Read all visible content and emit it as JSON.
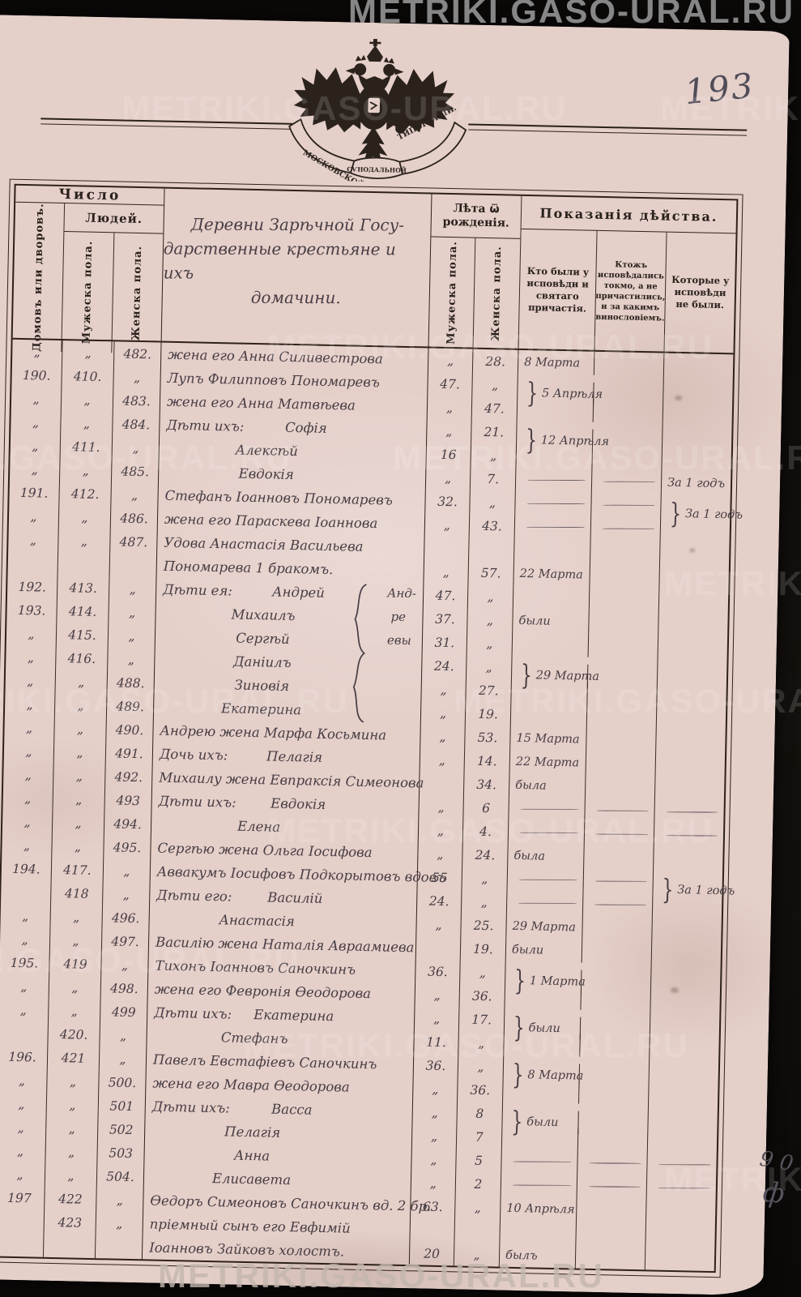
{
  "watermark": "METRIKI.GASO-URAL.RU",
  "page_number": "193",
  "emblem": {
    "ribbon_left": "МОСКОВСКОЙ",
    "ribbon_center": "СѴНОДАЛЬНОЙ",
    "ribbon_right": "ТИПОГРАФІИ."
  },
  "header": {
    "chislo": "Число",
    "lyudey": "Людей.",
    "col_houses": "Домовъ или дворовъ.",
    "col_male": "Мужеска пола.",
    "col_female": "Женска пола.",
    "village_lines": [
      "Деревни Зарѣчной Госу-",
      "дарственные крестьяне и ихъ",
      "домачини."
    ],
    "leta": "Лѣта ѿ рожденія.",
    "leta_male": "Мужеска пола.",
    "leta_female": "Женска пола.",
    "pokazaniya": "Показанія дѣйства.",
    "act1": "Кто были у исповѣди и святаго причастія.",
    "act2": "Ктожъ исповѣдались токмо, а не причастились, и за какимъ винословіемъ.",
    "act3": "Которые у исповѣди не были."
  },
  "group_note": [
    "Анд-",
    "ре",
    "евы"
  ],
  "margin_notes": [
    "9 0",
    "ф"
  ],
  "rows": [
    {
      "h": "„",
      "m": "„",
      "f": "482.",
      "name": "жена его Анна Силивестрова",
      "am": "„",
      "af": "28.",
      "a1": "8 Марта"
    },
    {
      "h": "190.",
      "m": "410.",
      "f": "„",
      "name": "Лупъ Филипповъ Пономаревъ",
      "am": "47.",
      "af": "„",
      "a1": "5 Апрѣля",
      "a1b": true
    },
    {
      "h": "„",
      "m": "„",
      "f": "483.",
      "name": "жена его Анна Матвѣева",
      "am": "„",
      "af": "47."
    },
    {
      "h": "„",
      "m": "„",
      "f": "484.",
      "name": "Дѣти ихъ:",
      "child": "Софія",
      "am": "„",
      "af": "21.",
      "a1": "12 Апрѣля",
      "a1b": true
    },
    {
      "h": "„",
      "m": "411.",
      "f": "„",
      "child": "Алексѣй",
      "am": "16",
      "af": "„"
    },
    {
      "h": "„",
      "m": "„",
      "f": "485.",
      "child": "Евдокія",
      "am": "„",
      "af": "7.",
      "d1": true,
      "d2": true,
      "a3": "За 1 годъ"
    },
    {
      "h": "191.",
      "m": "412.",
      "f": "„",
      "name": "Стефанъ Іоанновъ Пономаревъ",
      "am": "32.",
      "af": "„",
      "d1": true,
      "d2": true,
      "a3": "За 1 годъ",
      "a3b": true
    },
    {
      "h": "„",
      "m": "„",
      "f": "486.",
      "name": "жена его Параскева Іоаннова",
      "am": "„",
      "af": "43.",
      "d1": true,
      "d2": true
    },
    {
      "h": "„",
      "m": "„",
      "f": "487.",
      "name": "Удова Анастасія Васильева"
    },
    {
      "name": "Пономарева 1 бракомъ.",
      "am": "„",
      "af": "57.",
      "a1": "22 Марта"
    },
    {
      "h": "192.",
      "m": "413.",
      "f": "„",
      "name": "Дѣти ея:",
      "child": "Андрей",
      "am": "47.",
      "af": "„"
    },
    {
      "h": "193.",
      "m": "414.",
      "f": "„",
      "child": "Михаилъ",
      "am": "37.",
      "af": "„",
      "a1": "были"
    },
    {
      "h": "„",
      "m": "415.",
      "f": "„",
      "child": "Сергѣй",
      "am": "31.",
      "af": "„"
    },
    {
      "h": "„",
      "m": "416.",
      "f": "„",
      "child": "Даніилъ",
      "am": "24.",
      "af": "„",
      "a1": "29 Марта",
      "a1b": true
    },
    {
      "h": "„",
      "m": "„",
      "f": "488.",
      "child": "Зиновія",
      "am": "„",
      "af": "27."
    },
    {
      "h": "„",
      "m": "„",
      "f": "489.",
      "child": "Екатерина",
      "am": "„",
      "af": "19."
    },
    {
      "h": "„",
      "m": "„",
      "f": "490.",
      "name": "Андрею жена Марфа Косьмина",
      "am": "„",
      "af": "53.",
      "a1": "15 Марта"
    },
    {
      "h": "„",
      "m": "„",
      "f": "491.",
      "name": "Дочь ихъ:",
      "child": "Пелагія",
      "am": "„",
      "af": "14.",
      "a1": "22 Марта"
    },
    {
      "h": "„",
      "m": "„",
      "f": "492.",
      "name": "Михаилу жена Евпраксія Симеонова",
      "af": "34.",
      "a1": "была"
    },
    {
      "h": "„",
      "m": "„",
      "f": "493",
      "name": "Дѣти ихъ:",
      "child": "Евдокія",
      "am": "„",
      "af": "6",
      "d1": true,
      "d2": true,
      "d3": true
    },
    {
      "h": "„",
      "m": "„",
      "f": "494.",
      "child": "Елена",
      "am": "„",
      "af": "4.",
      "d1": true,
      "d2": true,
      "d3": true
    },
    {
      "h": "„",
      "m": "„",
      "f": "495.",
      "name": "Сергѣю жена Ольга Іосифова",
      "am": "„",
      "af": "24.",
      "a1": "была"
    },
    {
      "h": "194.",
      "m": "417.",
      "f": "„",
      "name": "Аввакумъ Іосифовъ Подкорытовъ вдовъ",
      "am": "55",
      "af": "„",
      "d1": true,
      "d2": true,
      "a3": "За 1 годъ",
      "a3b": true
    },
    {
      "h": "",
      "m": "418",
      "f": "„",
      "name": "Дѣти его:",
      "child": "Василій",
      "am": "24.",
      "af": "„",
      "d1": true,
      "d2": true
    },
    {
      "h": "„",
      "m": "„",
      "f": "496.",
      "child": "Анастасія",
      "am": "„",
      "af": "25.",
      "a1": "29 Марта"
    },
    {
      "h": "„",
      "m": "„",
      "f": "497.",
      "name": "Василію жена Наталія Авраамиева",
      "af": "19.",
      "a1": "были"
    },
    {
      "h": "195.",
      "m": "419",
      "f": "„",
      "name": "Тихонъ Іоанновъ Саночкинъ",
      "am": "36.",
      "af": "„",
      "a1": "1 Марта",
      "a1b": true
    },
    {
      "h": "„",
      "m": "„",
      "f": "498.",
      "name": "жена его Февронія Ѳеодорова",
      "am": "„",
      "af": "36."
    },
    {
      "h": "„",
      "m": "„",
      "f": "499",
      "name": "Дѣти ихъ:",
      "child": "Екатерина",
      "am": "„",
      "af": "17.",
      "a1": "были",
      "a1b": true
    },
    {
      "h": "",
      "m": "420.",
      "f": "„",
      "child": "Стефанъ",
      "am": "11.",
      "af": "„"
    },
    {
      "h": "196.",
      "m": "421",
      "f": "„",
      "name": "Павелъ Евстафіевъ Саночкинъ",
      "am": "36.",
      "af": "„",
      "a1": "8 Марта",
      "a1b": true
    },
    {
      "h": "„",
      "m": "„",
      "f": "500.",
      "name": "жена его Мавра Ѳеодорова",
      "am": "„",
      "af": "36."
    },
    {
      "h": "„",
      "m": "„",
      "f": "501",
      "name": "Дѣти ихъ:",
      "child": "Васса",
      "am": "„",
      "af": "8",
      "a1": "были",
      "a1b": true
    },
    {
      "h": "„",
      "m": "„",
      "f": "502",
      "child": "Пелагія",
      "am": "„",
      "af": "7"
    },
    {
      "h": "„",
      "m": "„",
      "f": "503",
      "child": "Анна",
      "am": "„",
      "af": "5",
      "d1": true,
      "d2": true,
      "d3": true
    },
    {
      "h": "„",
      "m": "„",
      "f": "504.",
      "child": "Елисавета",
      "am": "„",
      "af": "2",
      "d1": true,
      "d2": true,
      "d3": true
    },
    {
      "h": "197",
      "m": "422",
      "f": "„",
      "name": "Ѳедоръ Симеоновъ Саночкинъ вд. 2 бр.",
      "am": "63.",
      "af": "„",
      "a1": "10 Апрѣля"
    },
    {
      "h": "",
      "m": "423",
      "f": "„",
      "name": "пріемный сынъ его Евфимій"
    },
    {
      "name": "Іоанновъ Зайковъ холостъ.",
      "am": "20",
      "af": "„",
      "a1": "былъ"
    }
  ]
}
